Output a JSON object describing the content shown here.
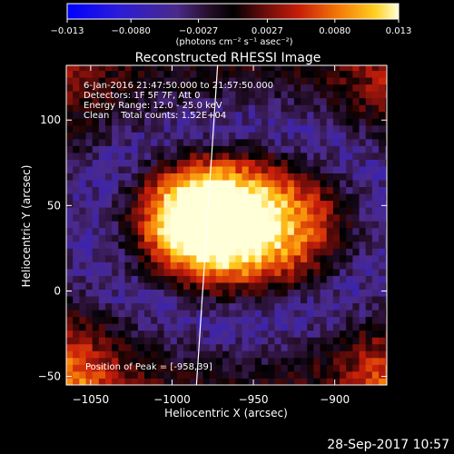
{
  "chart_data": {
    "type": "heatmap",
    "title": "Reconstructed RHESSI Image",
    "xlabel": "Heliocentric X (arcsec)",
    "ylabel": "Heliocentric Y (arcsec)",
    "xlim": [
      -1065,
      -868
    ],
    "ylim": [
      -55,
      132
    ],
    "xticks": [
      -1050,
      -1000,
      -950,
      -900
    ],
    "yticks": [
      -50,
      0,
      50,
      100
    ],
    "xtick_labels": [
      "−1050",
      "−1000",
      "−950",
      "−900"
    ],
    "ytick_labels": [
      "−50",
      "0",
      "50",
      "100"
    ],
    "colorbar": {
      "range": [
        -0.013,
        0.013
      ],
      "tick_values": [
        -0.013,
        -0.008,
        -0.0027,
        0.0027,
        0.008,
        0.013
      ],
      "tick_labels": [
        "−0.013",
        "−0.0080",
        "−0.0027",
        "0.0027",
        "0.0080",
        "0.013"
      ],
      "units": "(photons cm⁻² s⁻¹ asec⁻²)"
    },
    "annotations": [
      "6-Jan-2016 21:47:50.000 to 21:57:50.000",
      "Detectors: 1F 5F 7F, Att 0",
      "Energy Range: 12.0 - 25.0 keV",
      "Clean    Total counts: 1.52E+04"
    ],
    "peak_label": "Position of Peak = [-958,39]",
    "peak": [
      -958,
      39
    ],
    "limb_line": [
      [
        -985,
        -55
      ],
      [
        -972,
        132
      ]
    ],
    "grid": false
  },
  "footer": {
    "timestamp": "28-Sep-2017 10:57"
  }
}
